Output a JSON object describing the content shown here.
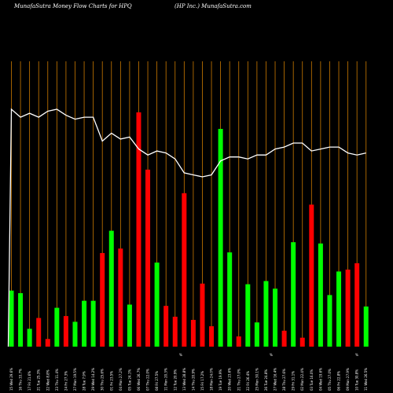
{
  "header": {
    "left": "MunafaSutra  Money Flow  Charts for HPQ",
    "right": "(HP Inc.) MunafaSutra.com"
  },
  "chart_data": {
    "type": "bar",
    "title": "MunafaSutra  Money Flow  Charts for HPQ",
    "subtitle": "(HP Inc.) MunafaSutra.com",
    "grid": "vertical lines",
    "colors": {
      "background": "#000000",
      "up": "#00ff00",
      "down": "#ff0000",
      "grid": "#cc7a00",
      "line": "#ffffff"
    },
    "categories": [
      "15 Wed 29.6%",
      "16 Thu 33.7%",
      "17 Fri 21.6%",
      "21 Tue 25.3%",
      "22 Wed 8.8%",
      "23 Thu 11.4%",
      "24 Fri 27.3%",
      "27 Mon 19.5%",
      "28 Tue 7.9%",
      "29 Wed 14.2%",
      "30 Thu 25.6%",
      "01 Fri 23.5%",
      "04 Mon 27.2%",
      "05 Tue 24.1%",
      "06 Wed 26.7%",
      "07 Thu 22.0%",
      "08 Fri 27.5%",
      "11 Mon 20.3%",
      "12 Tue 20.9%",
      "13 Wed 28.8%",
      "14 Thu 20.9%",
      "15 Fri 17.2%",
      "18 Mon 24.0%",
      "19 Tue 19.9%",
      "20 Wed 23.6%",
      "21 Thu 27.0%",
      "22 Fri 26.4%",
      "25 Mon 30.1%",
      "26 Tue 24.8%",
      "27 Wed 16.4%",
      "28 Thu 27.6%",
      "29 Fri 31.1%",
      "02 Mon 22.4%",
      "03 Tue 16.0%",
      "04 Wed 19.6%",
      "05 Thu 27.0%",
      "06 Fri 22.8%",
      "09 Mon 27.9%",
      "10 Tue 30.8%",
      "11 Wed 26.5%"
    ],
    "values": [
      88,
      84,
      28,
      45,
      12,
      61,
      48,
      39,
      72,
      72,
      147,
      182,
      154,
      66,
      368,
      278,
      132,
      64,
      47,
      241,
      42,
      99,
      32,
      342,
      148,
      16,
      98,
      38,
      103,
      91,
      25,
      164,
      14,
      223,
      162,
      81,
      118,
      121,
      131,
      63
    ],
    "directions": [
      "up",
      "up",
      "up",
      "down",
      "down",
      "up",
      "down",
      "up",
      "up",
      "up",
      "down",
      "up",
      "down",
      "up",
      "down",
      "down",
      "up",
      "down",
      "down",
      "down",
      "down",
      "down",
      "down",
      "up",
      "up",
      "down",
      "up",
      "up",
      "up",
      "up",
      "down",
      "up",
      "down",
      "down",
      "up",
      "up",
      "up",
      "down",
      "down",
      "up"
    ],
    "line": [
      21,
      20.6,
      20.8,
      20.6,
      20.9,
      21.0,
      20.7,
      20.5,
      20.6,
      20.6,
      19.4,
      19.8,
      19.5,
      19.6,
      19.0,
      18.7,
      18.9,
      18.8,
      18.5,
      17.8,
      17.7,
      17.6,
      17.7,
      18.4,
      18.6,
      18.6,
      18.5,
      18.7,
      18.7,
      19.0,
      19.1,
      19.3,
      19.3,
      18.9,
      19.0,
      19.1,
      19.1,
      18.8,
      18.7,
      18.8
    ],
    "x_markers": [
      "%",
      "%",
      "%"
    ]
  }
}
